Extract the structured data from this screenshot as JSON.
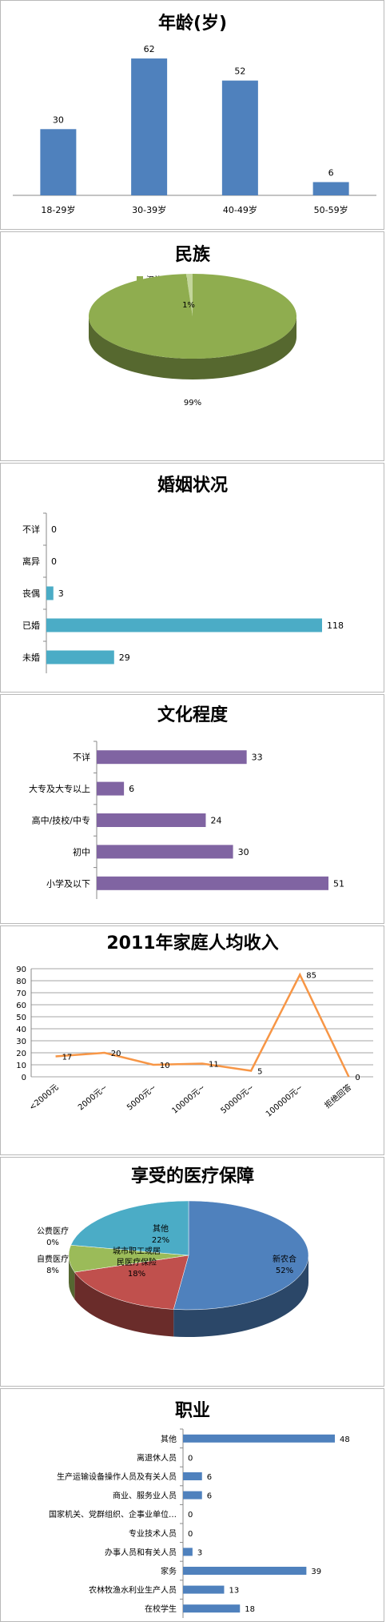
{
  "charts": [
    {
      "type": "bar",
      "title": "年龄(岁)",
      "categories": [
        "18-29岁",
        "30-39岁",
        "40-49岁",
        "50-59岁"
      ],
      "values": [
        30,
        62,
        52,
        6
      ],
      "ylim": [
        0,
        70
      ],
      "color": "#4f81bd",
      "grid": false
    },
    {
      "type": "pie",
      "title": "民族",
      "labels": [
        "汉族",
        "少数民族"
      ],
      "values": [
        99,
        1
      ],
      "value_labels": [
        "99%",
        "1%"
      ],
      "colors": [
        "#8fad4f",
        "#c3d69b"
      ],
      "legend": "top"
    },
    {
      "type": "bar",
      "orientation": "horizontal",
      "title": "婚姻状况",
      "categories": [
        "不详",
        "离异",
        "丧偶",
        "已婚",
        "未婚"
      ],
      "values": [
        0,
        0,
        3,
        118,
        29
      ],
      "color": "#4bacc6",
      "grid": false
    },
    {
      "type": "bar",
      "orientation": "horizontal",
      "title": "文化程度",
      "categories": [
        "不详",
        "大专及大专以上",
        "高中/技校/中专",
        "初中",
        "小学及以下"
      ],
      "values": [
        33,
        6,
        24,
        30,
        51
      ],
      "color": "#8064a2",
      "grid": false
    },
    {
      "type": "line",
      "title": "2011年家庭人均收入",
      "categories": [
        "<2000元",
        "2000元~",
        "5000元~",
        "10000元~",
        "50000元~",
        "100000元~",
        "拒绝回答"
      ],
      "values": [
        17,
        20,
        10,
        11,
        5,
        85,
        0
      ],
      "yticks": [
        "0",
        "10",
        "20",
        "30",
        "40",
        "50",
        "60",
        "70",
        "80",
        "90"
      ],
      "ylim": [
        0,
        90
      ],
      "color": "#f79646",
      "grid": true
    },
    {
      "type": "pie",
      "title": "享受的医疗保障",
      "labels": [
        "新农合",
        "城市职工或居民医疗保险",
        "自费医疗",
        "公费医疗",
        "其他"
      ],
      "label_lines": [
        [
          "新农合"
        ],
        [
          "城市职工或居",
          "民医疗保险"
        ],
        [
          "自费医疗"
        ],
        [
          "公费医疗"
        ],
        [
          "其他"
        ]
      ],
      "values": [
        52,
        18,
        8,
        0,
        22
      ],
      "value_labels": [
        "52%",
        "18%",
        "8%",
        "0%",
        "22%"
      ],
      "colors": [
        "#4f81bd",
        "#c0504d",
        "#9bbb59",
        "#8064a2",
        "#4bacc6"
      ]
    },
    {
      "type": "bar",
      "orientation": "horizontal",
      "title": "职业",
      "categories": [
        "其他",
        "离退休人员",
        "生产运输设备操作人员及有关人员",
        "商业、服务业人员",
        "国家机关、党群组织、企事业单位…",
        "专业技术人员",
        "办事人员和有关人员",
        "家务",
        "农林牧渔水利业生产人员",
        "在校学生"
      ],
      "values": [
        48,
        0,
        6,
        6,
        0,
        0,
        3,
        39,
        13,
        18
      ],
      "color": "#4f81bd",
      "grid": false
    }
  ]
}
